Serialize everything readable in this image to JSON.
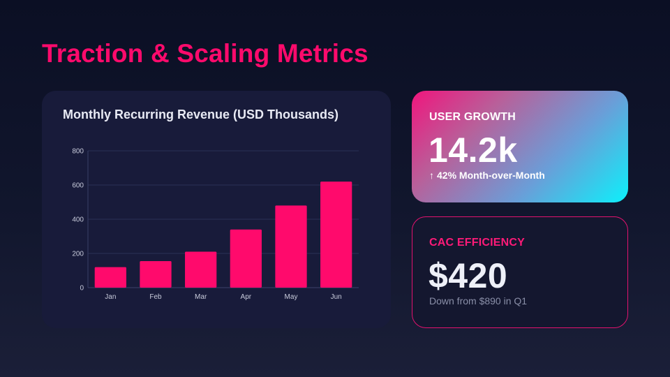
{
  "page": {
    "title": "Traction & Scaling Metrics"
  },
  "chart_data": {
    "type": "bar",
    "title": "Monthly Recurring Revenue (USD Thousands)",
    "categories": [
      "Jan",
      "Feb",
      "Mar",
      "Apr",
      "May",
      "Jun"
    ],
    "values": [
      120,
      155,
      210,
      340,
      480,
      620
    ],
    "ylim": [
      0,
      800
    ],
    "yticks": [
      0,
      200,
      400,
      600,
      800
    ],
    "xlabel": "",
    "ylabel": "",
    "grid": true,
    "bar_color": "#ff0a6c"
  },
  "cards": {
    "growth": {
      "label": "USER GROWTH",
      "value": "14.2k",
      "arrow_icon": "arrow-up-icon",
      "sub": "42% Month-over-Month"
    },
    "cac": {
      "label": "CAC EFFICIENCY",
      "value": "$420",
      "sub": "Down from $890 in Q1"
    }
  },
  "colors": {
    "accent": "#ff0a6c",
    "card_bg": "#181b3a",
    "cyan": "#0cf0fb"
  }
}
